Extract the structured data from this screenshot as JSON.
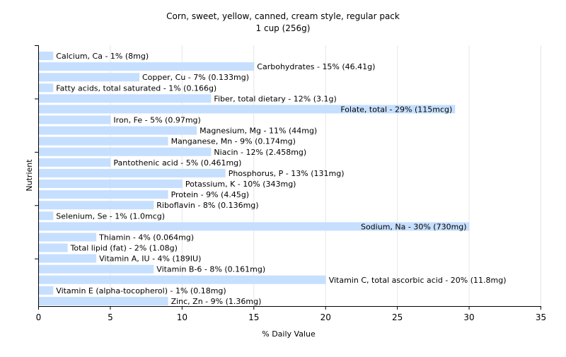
{
  "chart_data": {
    "type": "bar",
    "orientation": "horizontal",
    "title": "Corn, sweet, yellow, canned, cream style, regular pack",
    "subtitle": "1 cup (256g)",
    "xlabel": "% Daily Value",
    "ylabel": "Nutrient",
    "xlim": [
      0,
      35
    ],
    "xticks": [
      0,
      5,
      10,
      15,
      20,
      25,
      30,
      35
    ],
    "grid": true,
    "bar_color": "#c6dfff",
    "categories": [
      "Calcium, Ca",
      "Carbohydrates",
      "Copper, Cu",
      "Fatty acids, total saturated",
      "Fiber, total dietary",
      "Folate, total",
      "Iron, Fe",
      "Magnesium, Mg",
      "Manganese, Mn",
      "Niacin",
      "Pantothenic acid",
      "Phosphorus, P",
      "Potassium, K",
      "Protein",
      "Riboflavin",
      "Selenium, Se",
      "Sodium, Na",
      "Thiamin",
      "Total lipid (fat)",
      "Vitamin A, IU",
      "Vitamin B-6",
      "Vitamin C, total ascorbic acid",
      "Vitamin E (alpha-tocopherol)",
      "Zinc, Zn"
    ],
    "values": [
      1,
      15,
      7,
      1,
      12,
      29,
      5,
      11,
      9,
      12,
      5,
      13,
      10,
      9,
      8,
      1,
      30,
      4,
      2,
      4,
      8,
      20,
      1,
      9
    ],
    "labels": [
      "Calcium, Ca - 1% (8mg)",
      "Carbohydrates - 15% (46.41g)",
      "Copper, Cu - 7% (0.133mg)",
      "Fatty acids, total saturated - 1% (0.166g)",
      "Fiber, total dietary - 12% (3.1g)",
      "Folate, total - 29% (115mcg)",
      "Iron, Fe - 5% (0.97mg)",
      "Magnesium, Mg - 11% (44mg)",
      "Manganese, Mn - 9% (0.174mg)",
      "Niacin - 12% (2.458mg)",
      "Pantothenic acid - 5% (0.461mg)",
      "Phosphorus, P - 13% (131mg)",
      "Potassium, K - 10% (343mg)",
      "Protein - 9% (4.45g)",
      "Riboflavin - 8% (0.136mg)",
      "Selenium, Se - 1% (1.0mcg)",
      "Sodium, Na - 30% (730mg)",
      "Thiamin - 4% (0.064mg)",
      "Total lipid (fat) - 2% (1.08g)",
      "Vitamin A, IU - 4% (189IU)",
      "Vitamin B-6 - 8% (0.161mg)",
      "Vitamin C, total ascorbic acid - 20% (11.8mg)",
      "Vitamin E (alpha-tocopherol) - 1% (0.18mg)",
      "Zinc, Zn - 9% (1.36mg)"
    ]
  }
}
